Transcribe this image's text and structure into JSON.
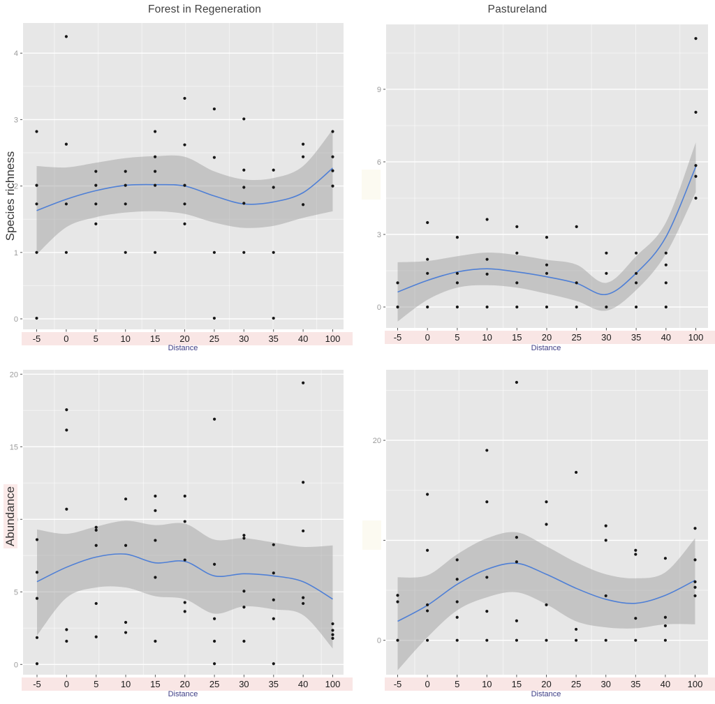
{
  "palette": {
    "panel_bg": "#e7e7e7",
    "grid_major": "#ffffff",
    "grid_minor": "#f3f3f3",
    "band_fill": "#9a9a9a",
    "smooth_line": "#4e7fd6",
    "point": "#161616",
    "axis_strip_bg": "#f9e6e5",
    "x_tick_label": "#1a1a1a",
    "y_tick_label": "#9a9a9a",
    "tick_mark": "#555555",
    "title_color": "#3f3f3f",
    "xlabel_color": "#3d3d85",
    "ylabel_bg": "#fbeae9",
    "artifact_rect": "#fcfaf1"
  },
  "chart_data": [
    {
      "type": "scatter",
      "title": "Forest in Regeneration",
      "ylabel": "Species richness",
      "xlabel": "Distance",
      "legend": "none",
      "grid": true,
      "categories": [
        "-5",
        "0",
        "5",
        "10",
        "15",
        "20",
        "25",
        "30",
        "35",
        "40",
        "100"
      ],
      "y_ticks": [
        0,
        1,
        2,
        3,
        4
      ],
      "ylim": [
        -0.2,
        4.45
      ],
      "smooth_line": [
        1.63,
        1.8,
        1.93,
        2.01,
        2.02,
        2.0,
        1.85,
        1.73,
        1.76,
        1.9,
        2.27
      ],
      "ci_upper": [
        2.3,
        2.28,
        2.35,
        2.42,
        2.45,
        2.44,
        2.22,
        2.1,
        2.12,
        2.3,
        2.85
      ],
      "ci_lower": [
        0.97,
        1.38,
        1.53,
        1.6,
        1.62,
        1.58,
        1.45,
        1.37,
        1.4,
        1.52,
        1.62
      ],
      "points": [
        [
          1,
          4.25
        ],
        [
          5,
          3.32
        ],
        [
          6,
          3.16
        ],
        [
          7,
          3.01
        ],
        [
          0,
          2.82
        ],
        [
          4,
          2.82
        ],
        [
          10,
          2.82
        ],
        [
          1,
          2.63
        ],
        [
          5,
          2.62
        ],
        [
          9,
          2.63
        ],
        [
          4,
          2.44
        ],
        [
          6,
          2.43
        ],
        [
          9,
          2.44
        ],
        [
          10,
          2.44
        ],
        [
          2,
          2.22
        ],
        [
          3,
          2.22
        ],
        [
          4,
          2.22
        ],
        [
          7,
          2.24
        ],
        [
          8,
          2.24
        ],
        [
          10,
          2.23
        ],
        [
          0,
          2.01
        ],
        [
          2,
          2.01
        ],
        [
          3,
          2.01
        ],
        [
          4,
          2.01
        ],
        [
          5,
          2.01
        ],
        [
          7,
          1.98
        ],
        [
          8,
          1.98
        ],
        [
          10,
          2.0
        ],
        [
          0,
          1.73
        ],
        [
          1,
          1.73
        ],
        [
          2,
          1.73
        ],
        [
          3,
          1.73
        ],
        [
          5,
          1.73
        ],
        [
          7,
          1.74
        ],
        [
          9,
          1.72
        ],
        [
          2,
          1.43
        ],
        [
          5,
          1.43
        ],
        [
          0,
          1.0
        ],
        [
          1,
          1.0
        ],
        [
          3,
          1.0
        ],
        [
          4,
          1.0
        ],
        [
          6,
          1.0
        ],
        [
          7,
          1.0
        ],
        [
          8,
          1.0
        ],
        [
          0,
          0.01
        ],
        [
          6,
          0.01
        ],
        [
          8,
          0.01
        ]
      ]
    },
    {
      "type": "scatter",
      "title": "Pastureland",
      "ylabel": "",
      "xlabel": "Distance",
      "legend": "none",
      "grid": true,
      "categories": [
        "-5",
        "0",
        "5",
        "10",
        "15",
        "20",
        "25",
        "30",
        "35",
        "40",
        "100"
      ],
      "y_ticks": [
        0,
        3,
        6,
        9
      ],
      "ylim": [
        -0.9,
        11.7
      ],
      "smooth_line": [
        0.62,
        1.1,
        1.45,
        1.58,
        1.45,
        1.25,
        0.98,
        0.52,
        1.4,
        2.9,
        5.8
      ],
      "ci_upper": [
        1.85,
        1.9,
        2.1,
        2.25,
        2.15,
        1.95,
        1.75,
        1.0,
        2.1,
        3.5,
        6.8
      ],
      "ci_lower": [
        -0.6,
        0.3,
        0.8,
        0.9,
        0.8,
        0.55,
        0.25,
        -0.15,
        0.7,
        2.2,
        4.75
      ],
      "points": [
        [
          10,
          11.1
        ],
        [
          10,
          8.05
        ],
        [
          10,
          5.85
        ],
        [
          10,
          5.4
        ],
        [
          10,
          4.5
        ],
        [
          3,
          3.62
        ],
        [
          1,
          3.49
        ],
        [
          4,
          3.32
        ],
        [
          6,
          3.32
        ],
        [
          2,
          2.88
        ],
        [
          5,
          2.88
        ],
        [
          4,
          2.23
        ],
        [
          7,
          2.23
        ],
        [
          8,
          2.23
        ],
        [
          9,
          2.23
        ],
        [
          1,
          1.97
        ],
        [
          3,
          1.97
        ],
        [
          5,
          1.74
        ],
        [
          9,
          1.74
        ],
        [
          1,
          1.39
        ],
        [
          2,
          1.39
        ],
        [
          3,
          1.36
        ],
        [
          5,
          1.39
        ],
        [
          7,
          1.39
        ],
        [
          8,
          1.39
        ],
        [
          0,
          1.0
        ],
        [
          2,
          1.0
        ],
        [
          4,
          1.0
        ],
        [
          6,
          1.0
        ],
        [
          8,
          1.0
        ],
        [
          9,
          1.0
        ],
        [
          0,
          0
        ],
        [
          1,
          0
        ],
        [
          2,
          0
        ],
        [
          3,
          0
        ],
        [
          4,
          0
        ],
        [
          5,
          0
        ],
        [
          6,
          0
        ],
        [
          7,
          0
        ],
        [
          8,
          0
        ],
        [
          9,
          0
        ]
      ]
    },
    {
      "type": "scatter",
      "title": "",
      "ylabel": "Abundance",
      "xlabel": "Distance",
      "legend": "none",
      "grid": true,
      "categories": [
        "-5",
        "0",
        "5",
        "10",
        "15",
        "20",
        "25",
        "30",
        "35",
        "40",
        "100"
      ],
      "y_ticks": [
        0,
        5,
        10,
        15,
        20
      ],
      "ylim": [
        -0.7,
        20.3
      ],
      "smooth_line": [
        5.7,
        6.7,
        7.4,
        7.6,
        7.0,
        7.1,
        6.1,
        6.25,
        6.1,
        5.7,
        4.5
      ],
      "ci_upper": [
        9.3,
        9.0,
        9.5,
        9.9,
        9.6,
        9.7,
        8.6,
        8.7,
        8.4,
        8.1,
        8.2
      ],
      "ci_lower": [
        2.0,
        4.6,
        5.3,
        5.3,
        4.7,
        4.5,
        3.5,
        4.0,
        3.8,
        3.4,
        1.1
      ],
      "points": [
        [
          9,
          19.4
        ],
        [
          1,
          17.55
        ],
        [
          6,
          16.9
        ],
        [
          1,
          16.15
        ],
        [
          9,
          12.55
        ],
        [
          4,
          11.6
        ],
        [
          5,
          11.6
        ],
        [
          3,
          11.4
        ],
        [
          1,
          10.7
        ],
        [
          4,
          10.6
        ],
        [
          5,
          9.85
        ],
        [
          2,
          9.45
        ],
        [
          2,
          9.25
        ],
        [
          9,
          9.2
        ],
        [
          7,
          8.9
        ],
        [
          7,
          8.7
        ],
        [
          0,
          8.6
        ],
        [
          4,
          8.55
        ],
        [
          8,
          8.25
        ],
        [
          2,
          8.2
        ],
        [
          3,
          8.2
        ],
        [
          5,
          7.2
        ],
        [
          6,
          6.9
        ],
        [
          0,
          6.35
        ],
        [
          8,
          6.3
        ],
        [
          4,
          6.0
        ],
        [
          7,
          5.05
        ],
        [
          9,
          4.6
        ],
        [
          0,
          4.55
        ],
        [
          8,
          4.45
        ],
        [
          5,
          4.27
        ],
        [
          2,
          4.2
        ],
        [
          9,
          4.2
        ],
        [
          7,
          3.95
        ],
        [
          5,
          3.65
        ],
        [
          6,
          3.15
        ],
        [
          8,
          3.15
        ],
        [
          3,
          2.9
        ],
        [
          10,
          2.8
        ],
        [
          1,
          2.4
        ],
        [
          10,
          2.35
        ],
        [
          3,
          2.2
        ],
        [
          10,
          2.05
        ],
        [
          2,
          1.9
        ],
        [
          0,
          1.85
        ],
        [
          10,
          1.8
        ],
        [
          1,
          1.6
        ],
        [
          4,
          1.6
        ],
        [
          6,
          1.6
        ],
        [
          7,
          1.6
        ],
        [
          0,
          0.05
        ],
        [
          6,
          0.05
        ],
        [
          8,
          0.05
        ]
      ]
    },
    {
      "type": "scatter",
      "title": "",
      "ylabel": "",
      "xlabel": "Distance",
      "legend": "none",
      "grid": true,
      "categories": [
        "-5",
        "0",
        "5",
        "10",
        "15",
        "20",
        "25",
        "30",
        "35",
        "40",
        "100"
      ],
      "y_ticks": [
        0,
        10,
        20
      ],
      "ylim": [
        -3.4,
        27.1
      ],
      "smooth_line": [
        1.9,
        3.5,
        5.6,
        7.1,
        7.7,
        6.6,
        5.2,
        4.1,
        3.7,
        4.5,
        6.0
      ],
      "ci_upper": [
        6.3,
        6.5,
        8.6,
        10.2,
        10.8,
        9.4,
        7.8,
        6.6,
        6.2,
        6.8,
        10.2
      ],
      "ci_lower": [
        -3.0,
        0.3,
        3.0,
        4.3,
        4.8,
        3.6,
        1.9,
        1.3,
        1.2,
        1.6,
        1.6
      ],
      "points": [
        [
          4,
          25.8
        ],
        [
          3,
          19.0
        ],
        [
          6,
          16.8
        ],
        [
          1,
          14.6
        ],
        [
          3,
          13.85
        ],
        [
          5,
          13.85
        ],
        [
          5,
          11.6
        ],
        [
          7,
          11.45
        ],
        [
          10,
          11.2
        ],
        [
          4,
          10.3
        ],
        [
          7,
          10.0
        ],
        [
          1,
          9.0
        ],
        [
          8,
          9.0
        ],
        [
          8,
          8.6
        ],
        [
          9,
          8.2
        ],
        [
          2,
          8.05
        ],
        [
          10,
          8.05
        ],
        [
          4,
          7.85
        ],
        [
          3,
          6.3
        ],
        [
          2,
          6.1
        ],
        [
          10,
          5.85
        ],
        [
          10,
          5.3
        ],
        [
          0,
          4.5
        ],
        [
          10,
          4.45
        ],
        [
          7,
          4.45
        ],
        [
          0,
          3.85
        ],
        [
          2,
          3.85
        ],
        [
          1,
          3.55
        ],
        [
          5,
          3.55
        ],
        [
          1,
          2.95
        ],
        [
          3,
          2.9
        ],
        [
          9,
          2.3
        ],
        [
          2,
          2.3
        ],
        [
          8,
          2.2
        ],
        [
          4,
          1.95
        ],
        [
          9,
          1.45
        ],
        [
          6,
          1.1
        ],
        [
          0,
          0
        ],
        [
          1,
          0
        ],
        [
          2,
          0
        ],
        [
          3,
          0
        ],
        [
          4,
          0
        ],
        [
          5,
          0
        ],
        [
          6,
          0
        ],
        [
          7,
          0
        ],
        [
          8,
          0
        ],
        [
          9,
          0
        ]
      ]
    }
  ]
}
